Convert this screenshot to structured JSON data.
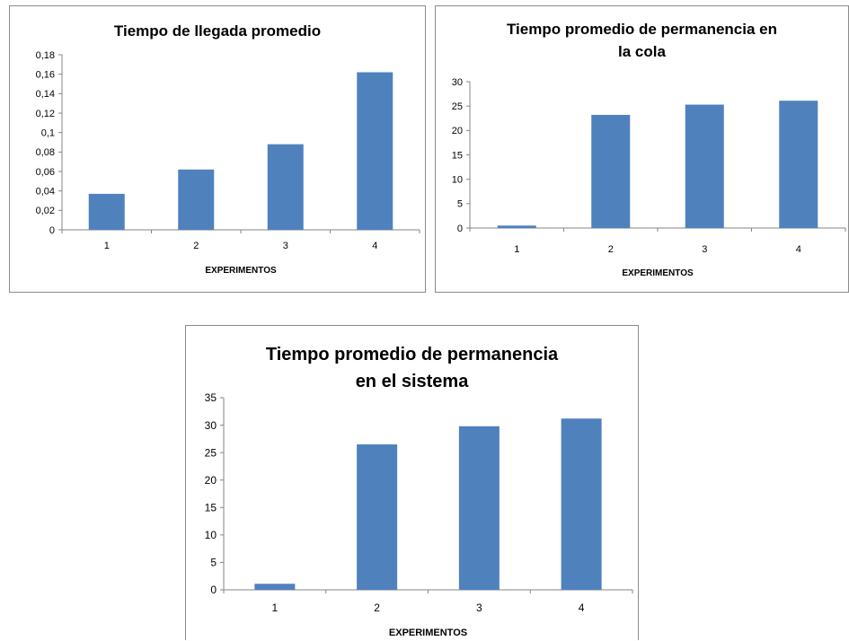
{
  "chart_data": [
    {
      "type": "bar",
      "title_lines": [
        "Tiempo de llegada promedio"
      ],
      "xlabel": "EXPERIMENTOS",
      "ylabel": "",
      "categories": [
        "1",
        "2",
        "3",
        "4"
      ],
      "values": [
        0.037,
        0.062,
        0.088,
        0.162
      ],
      "ylim": [
        0,
        0.18
      ],
      "yticks": [
        "0",
        "0,02",
        "0,04",
        "0,06",
        "0,08",
        "0,1",
        "0,12",
        "0,14",
        "0,16",
        "0,18"
      ],
      "grid": false,
      "legend": "none",
      "bar_color": "#4f81bd"
    },
    {
      "type": "bar",
      "title_lines": [
        "Tiempo promedio de permanencia en",
        "la cola"
      ],
      "xlabel": "EXPERIMENTOS",
      "ylabel": "",
      "categories": [
        "1",
        "2",
        "3",
        "4"
      ],
      "values": [
        0.5,
        23.2,
        25.3,
        26.1
      ],
      "ylim": [
        0,
        30
      ],
      "yticks": [
        "0",
        "5",
        "10",
        "15",
        "20",
        "25",
        "30"
      ],
      "grid": false,
      "legend": "none",
      "bar_color": "#4f81bd"
    },
    {
      "type": "bar",
      "title_lines": [
        "Tiempo promedio de permanencia",
        "en el sistema"
      ],
      "xlabel": "EXPERIMENTOS",
      "ylabel": "",
      "categories": [
        "1",
        "2",
        "3",
        "4"
      ],
      "values": [
        1.1,
        26.5,
        29.8,
        31.2
      ],
      "ylim": [
        0,
        35
      ],
      "yticks": [
        "0",
        "5",
        "10",
        "15",
        "20",
        "25",
        "30",
        "35"
      ],
      "grid": false,
      "legend": "none",
      "bar_color": "#4f81bd"
    }
  ]
}
